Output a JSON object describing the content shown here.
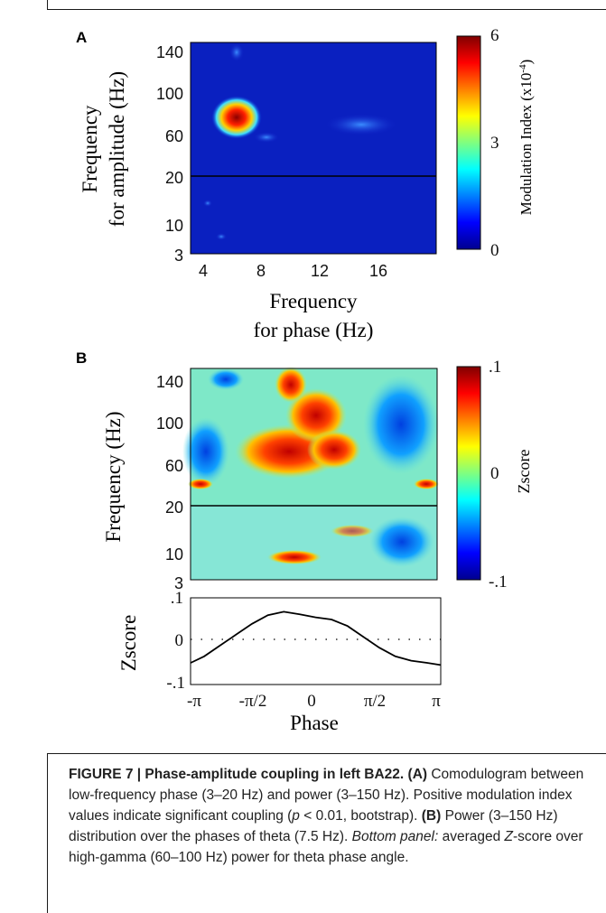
{
  "panel_a": {
    "label": "A",
    "y_label_1": "Frequency",
    "y_label_2": "for amplitude (Hz)",
    "y_ticks": [
      "140",
      "100",
      "60",
      "20",
      "10",
      "3"
    ],
    "x_ticks": [
      "4",
      "8",
      "12",
      "16"
    ],
    "x_label_1": "Frequency",
    "x_label_2": "for phase (Hz)",
    "colorbar_ticks": [
      "6",
      "3",
      "0"
    ],
    "colorbar_label": "Modulation Index (x10",
    "colorbar_label_exp": "-4",
    "colorbar_label_end": ")"
  },
  "panel_b": {
    "label": "B",
    "y_label": "Frequency (Hz)",
    "y_ticks": [
      "140",
      "100",
      "60",
      "20",
      "10",
      "3"
    ],
    "colorbar_ticks": [
      ".1",
      "0",
      "-.1"
    ],
    "colorbar_label": "Zscore",
    "line_y_label": "Zscore",
    "line_y_ticks": [
      ".1",
      "0",
      "-.1"
    ],
    "line_x_ticks": [
      "-π",
      "-π/2",
      "0",
      "π/2",
      "π"
    ],
    "line_x_label": "Phase"
  },
  "chart_data": [
    {
      "type": "heatmap",
      "panel": "A",
      "x": "phase frequency 3–20 Hz",
      "y": "amplitude frequency 3–150 Hz",
      "xticks": [
        4,
        8,
        12,
        16
      ],
      "yticks": [
        3,
        10,
        20,
        60,
        100,
        140
      ],
      "clim": [
        0,
        6
      ],
      "colormap": "jet"
    },
    {
      "type": "heatmap",
      "panel": "B",
      "x": "phase",
      "yticks": [
        3,
        10,
        20,
        60,
        100,
        140
      ],
      "clim": [
        -0.1,
        0.1
      ],
      "colormap": "jet"
    },
    {
      "type": "line",
      "panel": "B-bottom",
      "x": [
        -3.14,
        -2.8,
        -2.4,
        -2.0,
        -1.6,
        -1.2,
        -0.8,
        -0.4,
        0,
        0.4,
        0.8,
        1.2,
        1.6,
        2.0,
        2.4,
        2.8,
        3.14
      ],
      "y": [
        -0.05,
        -0.035,
        -0.01,
        0.015,
        0.04,
        0.06,
        0.068,
        0.062,
        0.055,
        0.05,
        0.035,
        0.01,
        -0.015,
        -0.035,
        -0.045,
        -0.05,
        -0.055
      ],
      "xlim": [
        -3.14159,
        3.14159
      ],
      "ylim": [
        -0.1,
        0.1
      ]
    }
  ],
  "caption": {
    "figure_label": "FIGURE 7 | Phase-amplitude coupling in left BA22. (A)",
    "line_a": " Comodulogram between low-frequency phase (3–20 Hz) and power (3–150 Hz). Positive modulation index values indicate significant coupling (",
    "p_italic": "p",
    "line_a_end": " < 0.01, bootstrap). ",
    "b_label": "(B)",
    "line_b": " Power (3–150 Hz) distribution over the phases of theta (7.5 Hz). ",
    "bottom_italic": "Bottom panel:",
    "line_c": " averaged ",
    "z_italic": "Z",
    "line_c_end": "-score over high-gamma (60–100 Hz) power for theta phase angle."
  }
}
